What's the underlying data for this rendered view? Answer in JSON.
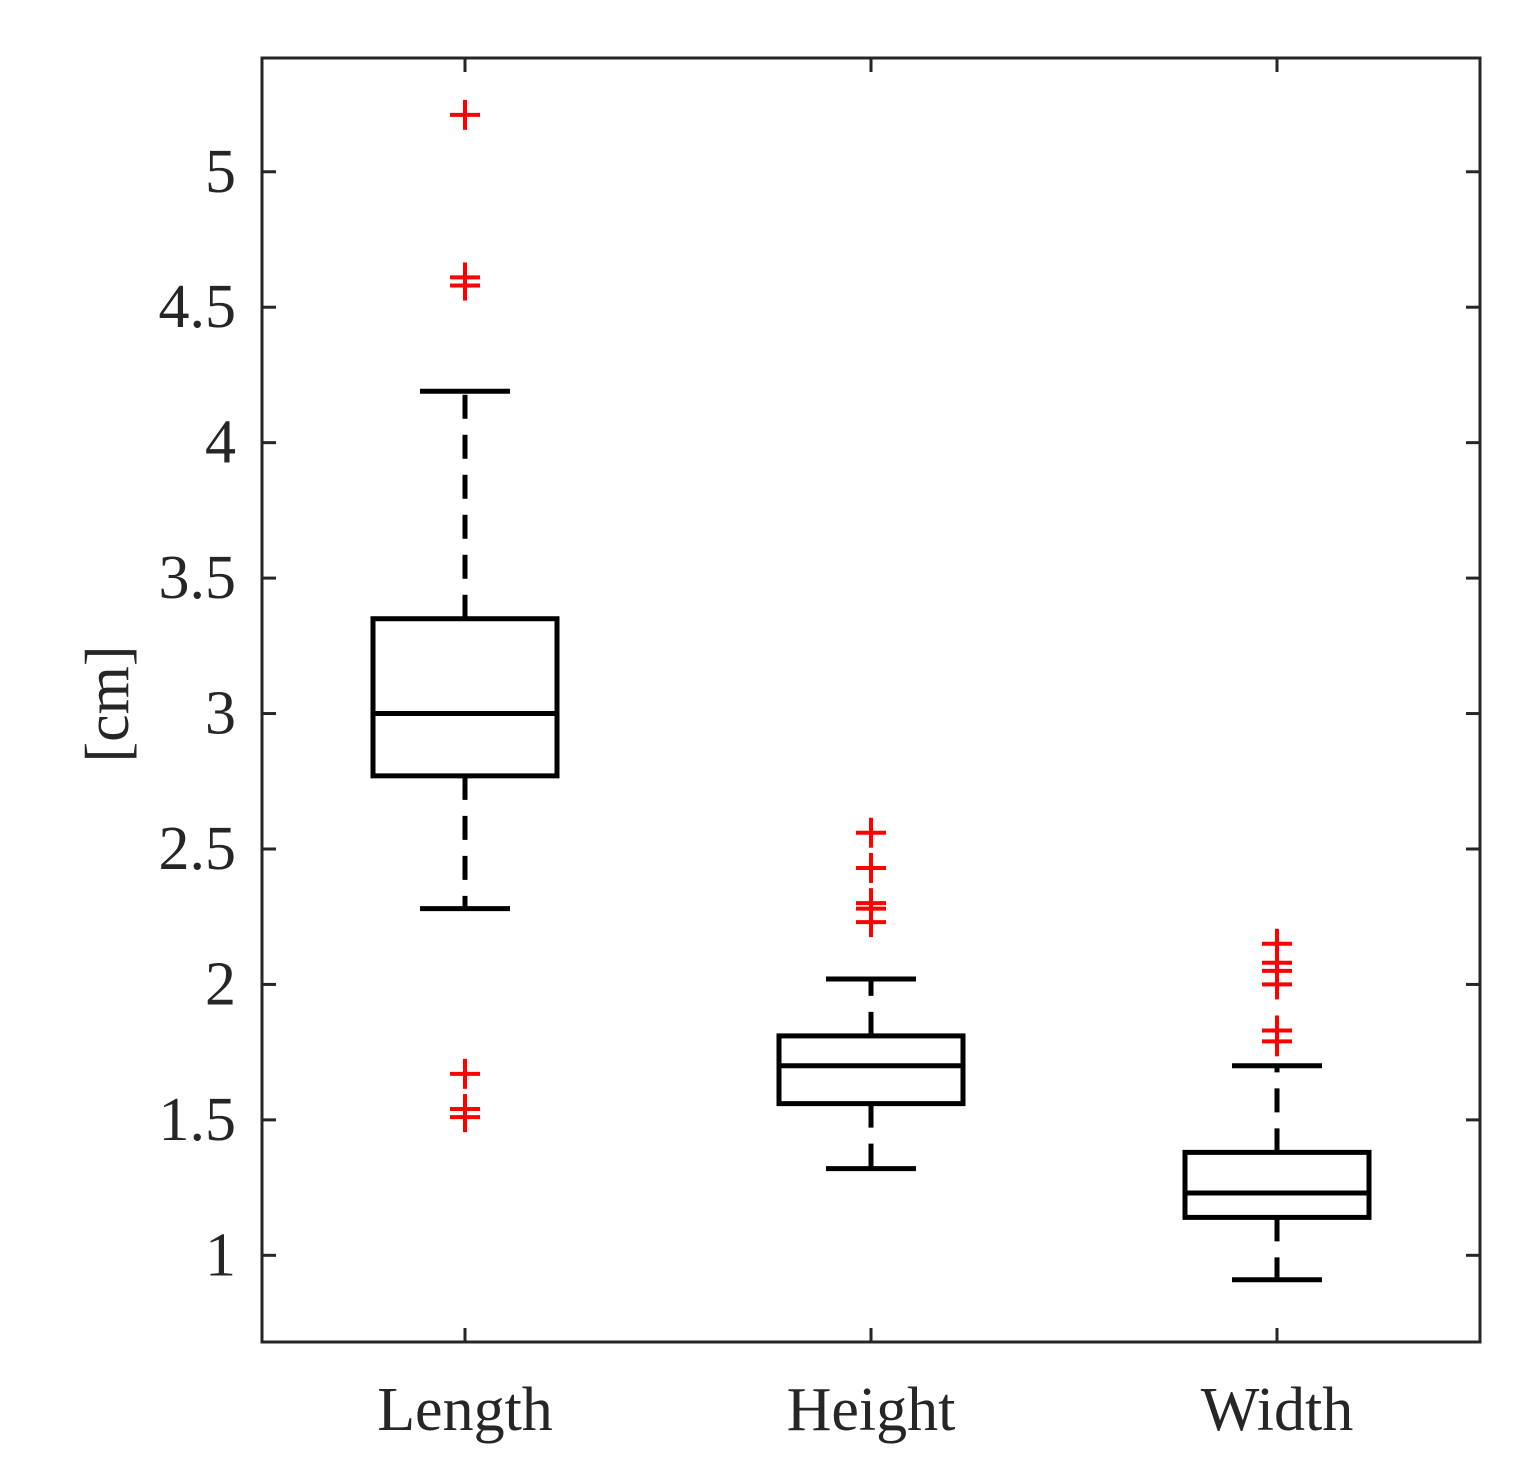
{
  "chart_data": {
    "type": "box",
    "title": "",
    "xlabel": "",
    "ylabel": "[cm]",
    "ylim": [
      0.68,
      5.42
    ],
    "yticks": [
      1,
      1.5,
      2,
      2.5,
      3,
      3.5,
      4,
      4.5,
      5
    ],
    "ytick_labels": [
      "1",
      "1.5",
      "2",
      "2.5",
      "3",
      "3.5",
      "4",
      "4.5",
      "5"
    ],
    "grid": false,
    "legend": "none",
    "colors": {
      "box": "#000000",
      "outlier": "#ff0000",
      "axis": "#262626"
    },
    "categories": [
      "Length",
      "Height",
      "Width"
    ],
    "boxes": [
      {
        "name": "Length",
        "whisker_low": 2.28,
        "q1": 2.77,
        "median": 3.0,
        "q3": 3.35,
        "whisker_high": 4.19,
        "outliers": [
          5.21,
          4.61,
          4.58,
          1.67,
          1.54,
          1.51
        ]
      },
      {
        "name": "Height",
        "whisker_low": 1.32,
        "q1": 1.56,
        "median": 1.7,
        "q3": 1.81,
        "whisker_high": 2.02,
        "outliers": [
          2.56,
          2.43,
          2.3,
          2.28,
          2.23
        ]
      },
      {
        "name": "Width",
        "whisker_low": 0.91,
        "q1": 1.14,
        "median": 1.23,
        "q3": 1.38,
        "whisker_high": 1.7,
        "outliers": [
          2.15,
          2.08,
          2.05,
          2.0,
          1.83,
          1.79
        ]
      }
    ]
  }
}
